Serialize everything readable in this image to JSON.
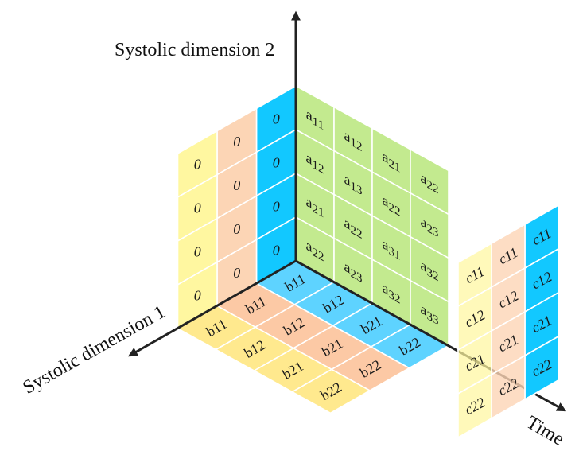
{
  "axes": {
    "vertical_label": "Systolic dimension 2",
    "left_label": "Systolic dimension 1",
    "right_label": "Time"
  },
  "colors": {
    "green": "#c3ea8f",
    "wall_yellow": "#fff7a0",
    "wall_peach": "#fcd5b5",
    "wall_blue": "#12c8ff",
    "floor_yellow": "#ffe98e",
    "floor_peach": "#fcc9a5",
    "floor_blue": "#5ed3ff",
    "axis": "#222222"
  },
  "a_matrix": [
    [
      "a11",
      "a12",
      "a21",
      "a22"
    ],
    [
      "a12",
      "a13",
      "a22",
      "a23"
    ],
    [
      "a21",
      "a22",
      "a31",
      "a32"
    ],
    [
      "a22",
      "a23",
      "a32",
      "a33"
    ]
  ],
  "zero_wall": {
    "columns": [
      "blue",
      "peach",
      "yellow"
    ],
    "labels": [
      [
        "0",
        "0",
        "0",
        "0"
      ],
      [
        "0",
        "0",
        "0",
        "0"
      ],
      [
        "0",
        "0",
        "0",
        "0"
      ]
    ]
  },
  "b_floor": {
    "rows": [
      "blue",
      "peach",
      "yellow"
    ],
    "labels": [
      [
        "b11",
        "b12",
        "b21",
        "b22"
      ],
      [
        "b11",
        "b12",
        "b21",
        "b22"
      ],
      [
        "b11",
        "b12",
        "b21",
        "b22"
      ]
    ]
  },
  "c_panel": {
    "columns": [
      "blue",
      "peach",
      "yellow"
    ],
    "labels": [
      [
        "c11",
        "c12",
        "c21",
        "c22"
      ],
      [
        "c11",
        "c12",
        "c21",
        "c22"
      ],
      [
        "c11",
        "c12",
        "c21",
        "c22"
      ]
    ]
  }
}
